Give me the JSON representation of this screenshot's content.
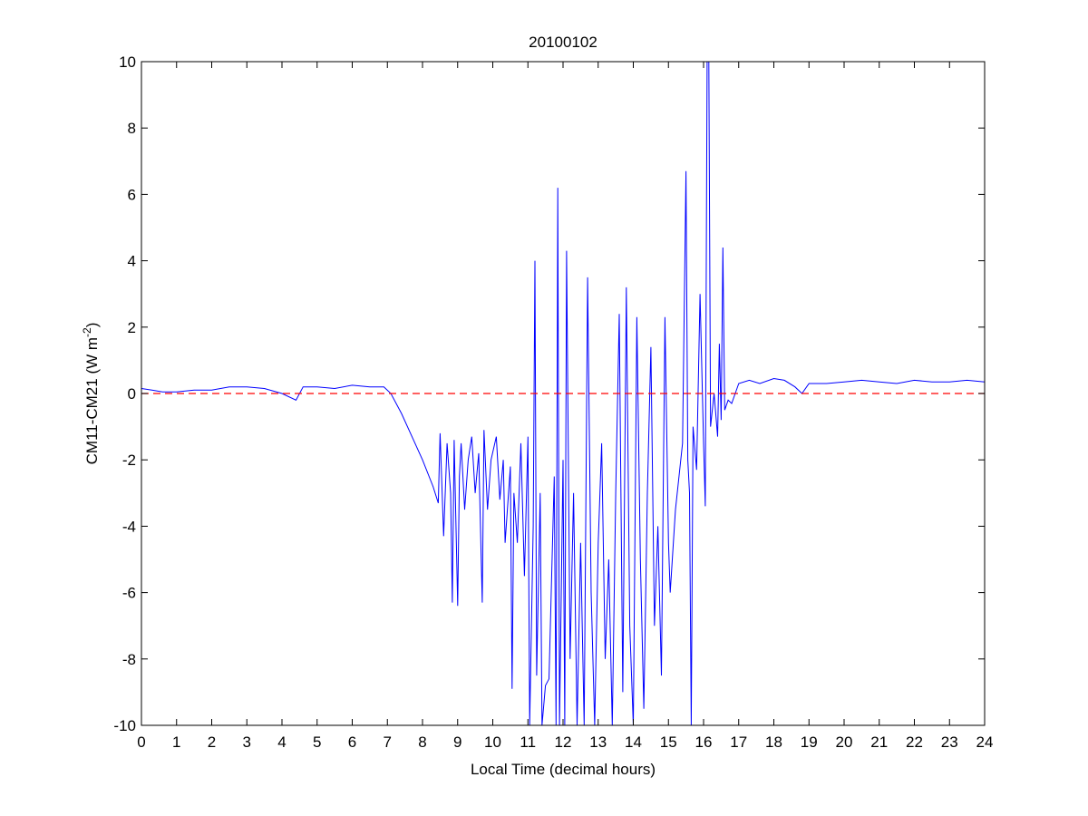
{
  "chart_data": {
    "type": "line",
    "title": "20100102",
    "xlabel": "Local Time (decimal hours)",
    "ylabel_main": "CM11-CM21 (W m",
    "ylabel_sup": "-2",
    "ylabel_close": ")",
    "xlim": [
      0,
      24
    ],
    "ylim": [
      -10,
      10
    ],
    "xticks": [
      "0",
      "1",
      "2",
      "3",
      "4",
      "5",
      "6",
      "7",
      "8",
      "9",
      "10",
      "11",
      "12",
      "13",
      "14",
      "15",
      "16",
      "17",
      "18",
      "19",
      "20",
      "21",
      "22",
      "23",
      "24"
    ],
    "yticks": [
      "-10",
      "-8",
      "-6",
      "-4",
      "-2",
      "0",
      "2",
      "4",
      "6",
      "8",
      "10"
    ],
    "grid": false,
    "series": [
      {
        "name": "CM11-CM21",
        "color": "#0000ff",
        "x": [
          0,
          0.3,
          0.6,
          1,
          1.5,
          2,
          2.5,
          3,
          3.5,
          4,
          4.4,
          4.6,
          5,
          5.5,
          6,
          6.5,
          6.9,
          7.1,
          7.4,
          7.7,
          8,
          8.3,
          8.45,
          8.5,
          8.6,
          8.7,
          8.8,
          8.85,
          8.9,
          9.0,
          9.05,
          9.1,
          9.2,
          9.3,
          9.4,
          9.5,
          9.6,
          9.7,
          9.75,
          9.85,
          9.95,
          10.1,
          10.2,
          10.3,
          10.35,
          10.5,
          10.55,
          10.6,
          10.7,
          10.8,
          10.9,
          11.0,
          11.05,
          11.15,
          11.2,
          11.25,
          11.35,
          11.4,
          11.5,
          11.6,
          11.75,
          11.8,
          11.85,
          11.9,
          12.0,
          12.05,
          12.1,
          12.2,
          12.3,
          12.4,
          12.5,
          12.6,
          12.7,
          12.8,
          12.9,
          13.0,
          13.1,
          13.2,
          13.3,
          13.4,
          13.5,
          13.6,
          13.7,
          13.8,
          13.9,
          14.0,
          14.1,
          14.2,
          14.3,
          14.4,
          14.5,
          14.6,
          14.7,
          14.8,
          14.9,
          15.0,
          15.05,
          15.2,
          15.3,
          15.4,
          15.5,
          15.55,
          15.6,
          15.65,
          15.7,
          15.8,
          15.9,
          16.0,
          16.05,
          16.1,
          16.15,
          16.2,
          16.3,
          16.4,
          16.45,
          16.5,
          16.55,
          16.6,
          16.7,
          16.8,
          17.0,
          17.3,
          17.6,
          18,
          18.3,
          18.6,
          18.8,
          19,
          19.5,
          20,
          20.5,
          21,
          21.5,
          22,
          22.5,
          23,
          23.5,
          24
        ],
        "y": [
          0.15,
          0.1,
          0.05,
          0.05,
          0.1,
          0.1,
          0.2,
          0.2,
          0.15,
          0.0,
          -0.2,
          0.2,
          0.2,
          0.15,
          0.25,
          0.2,
          0.2,
          0,
          -0.6,
          -1.3,
          -2,
          -2.8,
          -3.3,
          -1.2,
          -4.3,
          -1.5,
          -3,
          -6.3,
          -1.4,
          -6.4,
          -2.5,
          -1.5,
          -3.5,
          -2,
          -1.3,
          -3,
          -1.8,
          -6.3,
          -1.1,
          -3.5,
          -2,
          -1.3,
          -3.2,
          -2,
          -4.5,
          -2.2,
          -8.9,
          -3,
          -4.5,
          -1.5,
          -5.5,
          -1.3,
          -10,
          -4,
          4.0,
          -8.5,
          -3,
          -10,
          -8.8,
          -8.6,
          -2.5,
          -10,
          6.2,
          -10,
          -2,
          -10,
          4.3,
          -8,
          -3,
          -10,
          -4.5,
          -10,
          3.5,
          -6,
          -10,
          -4.5,
          -1.5,
          -8,
          -5,
          -10,
          -3,
          2.4,
          -9,
          3.2,
          -7,
          -10,
          2.3,
          -5,
          -9.5,
          -3,
          1.4,
          -7,
          -4,
          -8.5,
          2.3,
          -4.5,
          -6,
          -3.5,
          -2.5,
          -1.5,
          6.7,
          -2,
          -3,
          -10,
          -1,
          -2.3,
          3.0,
          -1.5,
          -3.4,
          10,
          10,
          -1,
          0,
          -1.3,
          1.5,
          -0.8,
          4.4,
          -0.5,
          -0.2,
          -0.3,
          0.3,
          0.4,
          0.3,
          0.45,
          0.4,
          0.2,
          0.0,
          0.3,
          0.3,
          0.35,
          0.4,
          0.35,
          0.3,
          0.4,
          0.35,
          0.35,
          0.4,
          0.35
        ]
      },
      {
        "name": "zero reference",
        "color": "#ff0000",
        "style": "dashed",
        "x": [
          0,
          24
        ],
        "y": [
          0,
          0
        ]
      }
    ]
  }
}
